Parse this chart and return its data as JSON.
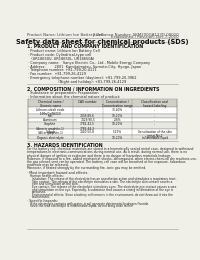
{
  "bg_color": "#f0efe8",
  "page_bg": "#f0efe8",
  "header_left": "Product Name: Lithium Ion Battery Cell",
  "header_right_line1": "Substance Number: SKM200GA123D-00010",
  "header_right_line2": "Established / Revision: Dec.7,2010",
  "title": "Safety data sheet for chemical products (SDS)",
  "section1_title": "1. PRODUCT AND COMPANY IDENTIFICATION",
  "section1_lines": [
    "· Product name: Lithium Ion Battery Cell",
    "· Product code: Cylindrical-type cell",
    "   (UR18650U, UR18650L, UR18650A)",
    "· Company name:   Sanyo Electric Co., Ltd., Mobile Energy Company",
    "· Address:        2001  Kamitaimatsu, Sumoto-City, Hyogo, Japan",
    "· Telephone number: +81-799-20-4111",
    "· Fax number:  +81-799-26-4129",
    "· Emergency telephone number (daytime): +81-799-20-3962",
    "                           (Night and holiday): +81-799-26-4129"
  ],
  "section2_title": "2. COMPOSITION / INFORMATION ON INGREDIENTS",
  "section2_line1": "· Substance or preparation: Preparation",
  "section2_line2": "· Information about the chemical nature of product:",
  "col_headers": [
    "Chemical name /\nGeneric name",
    "CAS number",
    "Concentration /\nConcentration range",
    "Classification and\nhazard labeling"
  ],
  "table_rows": [
    [
      "Lithium cobalt oxide\n(LiMn/Co/Ni/O2)",
      "-",
      "30-40%",
      "-"
    ],
    [
      "Iron",
      "7439-89-6",
      "10-20%",
      "-"
    ],
    [
      "Aluminum",
      "7429-90-5",
      "2-6%",
      "-"
    ],
    [
      "Graphite\n(Area in graphite-1)\n(All-in graphite-1)",
      "7782-42-5\n7782-44-2",
      "10-20%",
      "-"
    ],
    [
      "Copper",
      "7440-50-8",
      "5-15%",
      "Sensitization of the skin\ngroup No.2"
    ],
    [
      "Organic electrolyte",
      "-",
      "10-20%",
      "Inflammable liquid"
    ]
  ],
  "section3_title": "3. HAZARDS IDENTIFICATION",
  "section3_para1": [
    "For the battery cell, chemical materials are stored in a hermetically sealed metal case, designed to withstand",
    "temperatures in electronic-communications during normal use. As a result, during normal use, there is no",
    "physical danger of ignition or explosion and there is no danger of hazardous materials leakage.",
    "However, if exposed to a fire, added mechanical shocks, decomposed, when electro-chemical dry reactions use,",
    "the gas release vent can be operated. The battery cell case will be breached at fire exposure, hazardous",
    "materials may be released.",
    "Moreover, if heated strongly by the surrounding fire, ionic gas may be emitted."
  ],
  "section3_bullet1": "· Most important hazard and effects:",
  "section3_sub1": "Human health effects:",
  "section3_inhale": "Inhalation: The release of the electrolyte has an anesthetize action and stimulates a respiratory tract.",
  "section3_skin": [
    "Skin contact: The release of the electrolyte stimulates a skin. The electrolyte skin contact causes a",
    "sore and stimulation on the skin."
  ],
  "section3_eye": [
    "Eye contact: The release of the electrolyte stimulates eyes. The electrolyte eye contact causes a sore",
    "and stimulation on the eye. Especially, a substance that causes a strong inflammation of the eye is",
    "contained."
  ],
  "section3_env": [
    "Environmental effects: Since a battery cell remains in the environment, do not throw out it into the",
    "environment."
  ],
  "section3_bullet2": "· Specific hazards:",
  "section3_specific": [
    "If the electrolyte contacts with water, it will generate detrimental hydrogen fluoride.",
    "Since the lead electrolyte is inflammable liquid, do not bring close to fire."
  ],
  "line_color": "#999999",
  "text_color": "#222222",
  "header_color": "#444444",
  "table_header_bg": "#d0d0c8",
  "table_row_bg1": "#ffffff",
  "table_row_bg2": "#e8e8e0"
}
